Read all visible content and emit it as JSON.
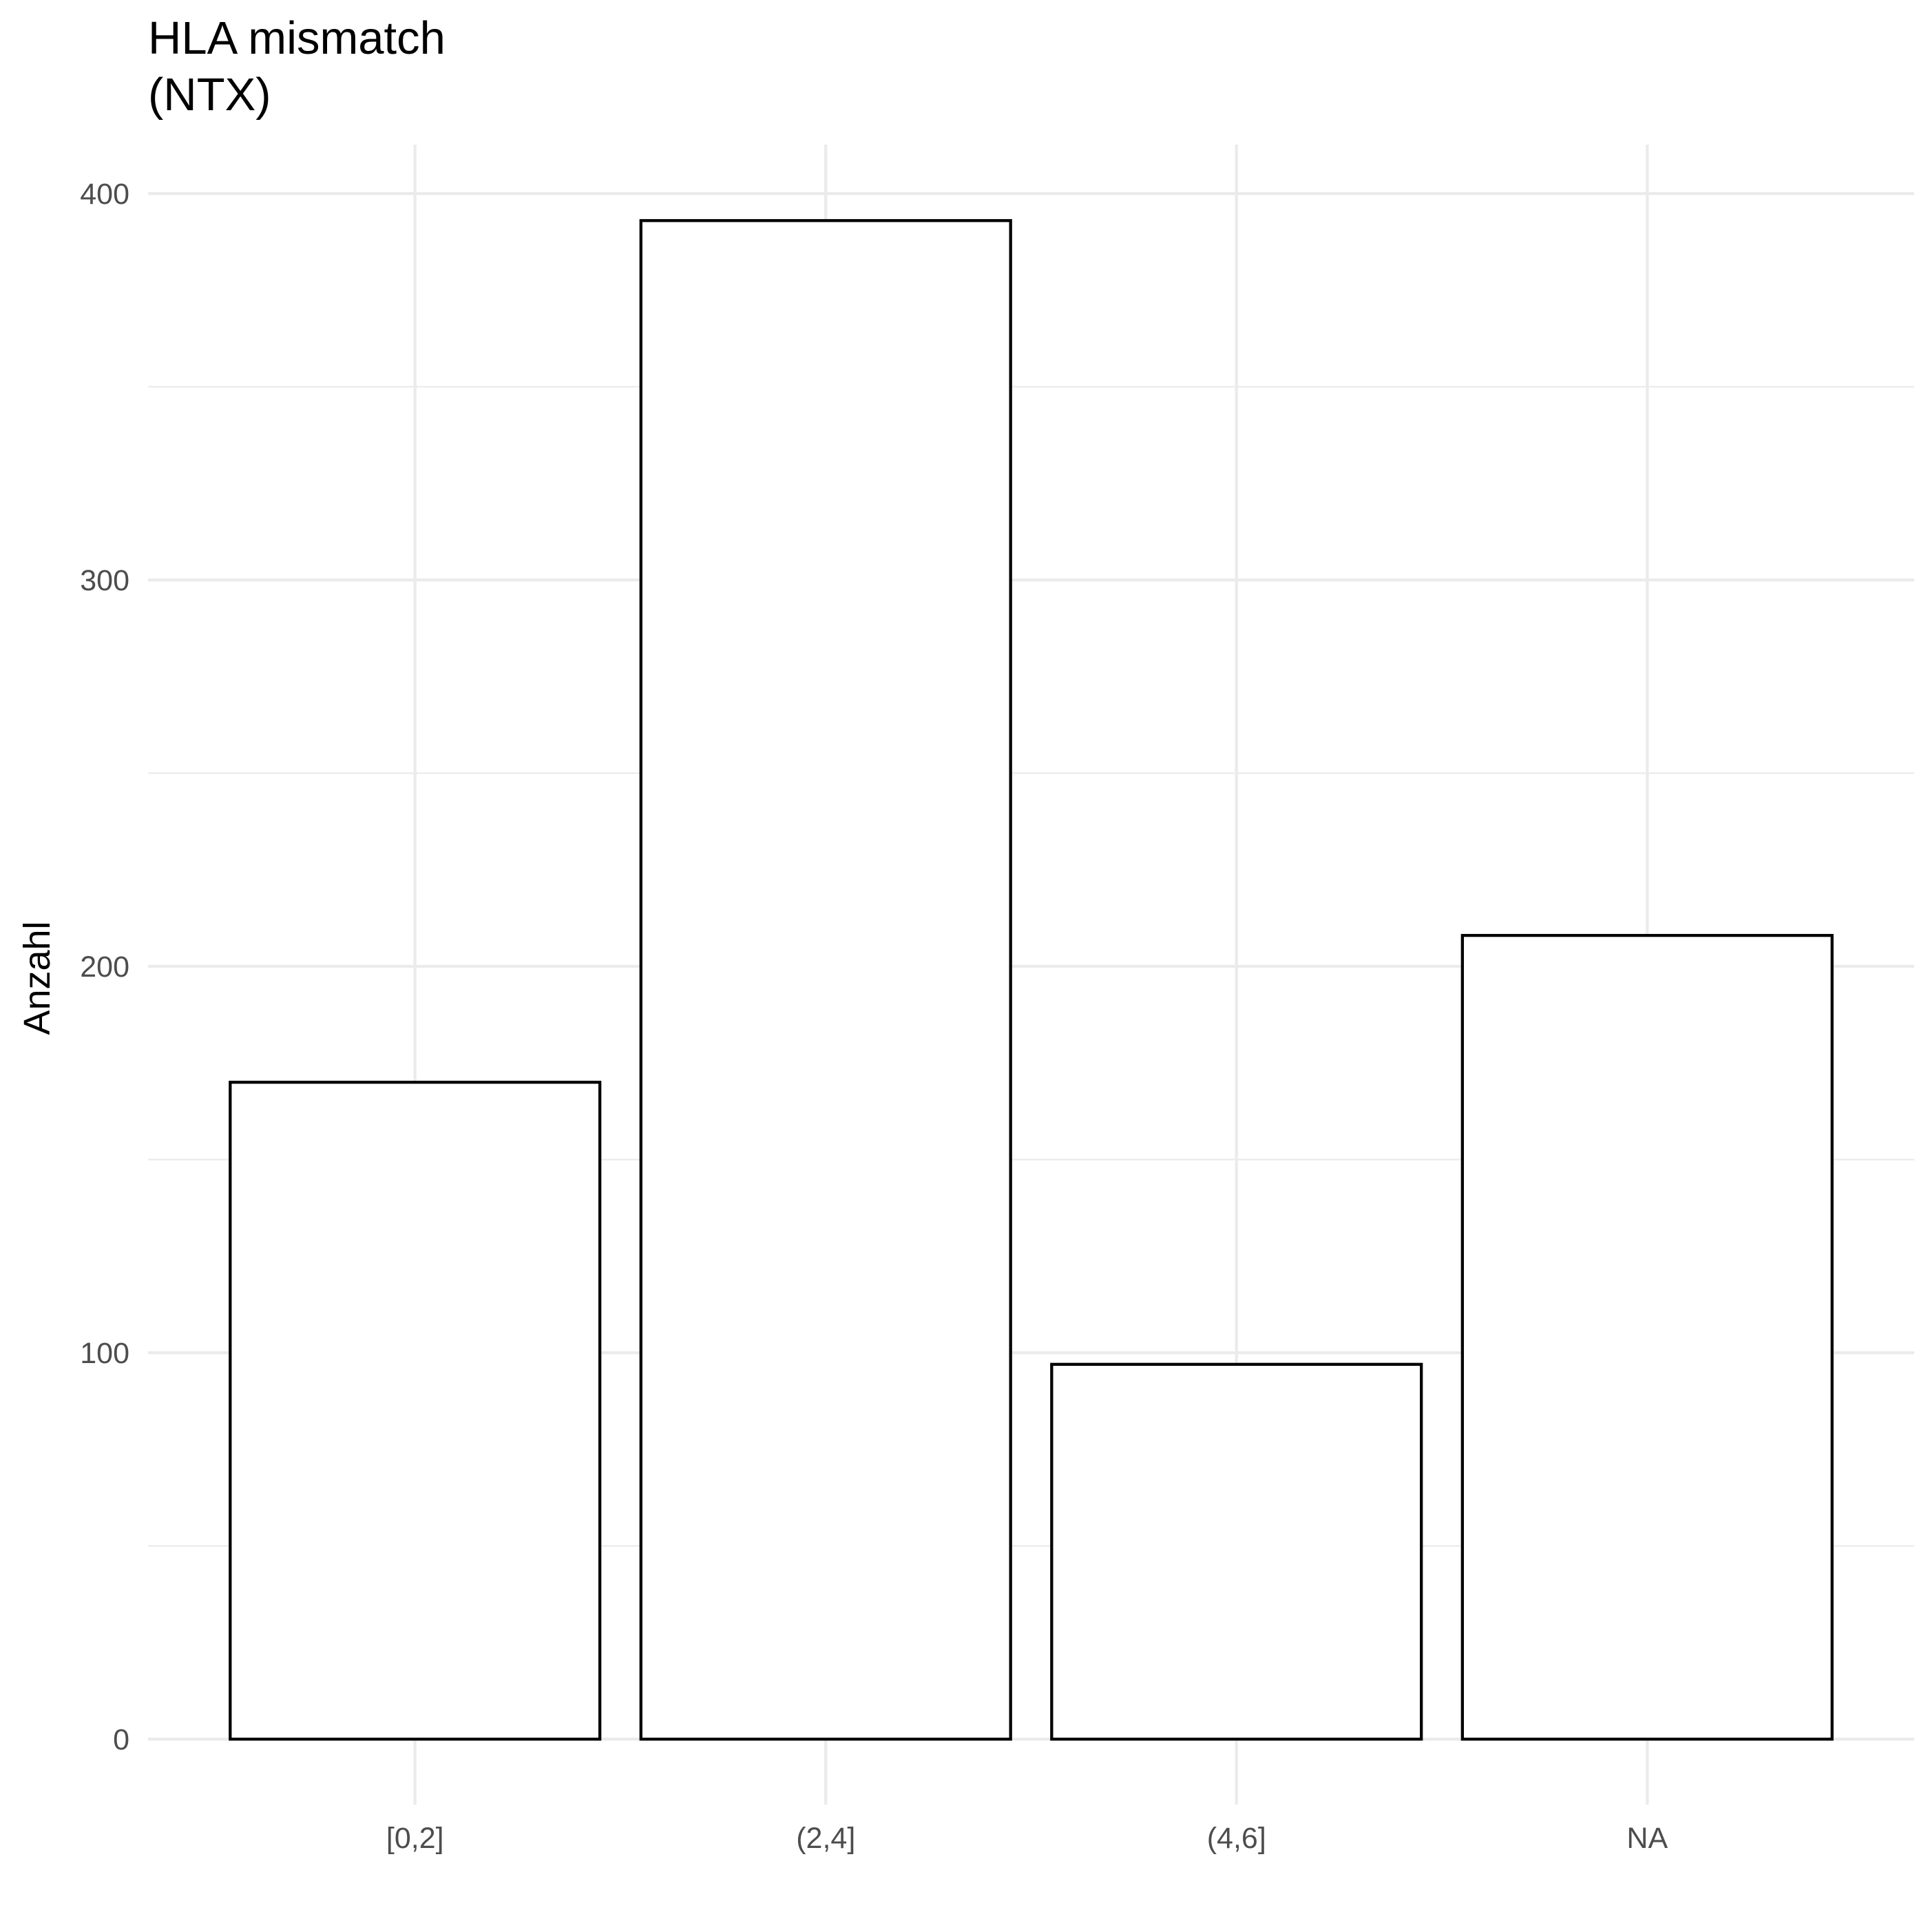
{
  "chart_data": {
    "type": "bar",
    "title_lines": [
      "HLA mismatch",
      "(NTX)"
    ],
    "xlabel": "",
    "ylabel": "Anzahl",
    "categories": [
      "[0,2]",
      "(2,4]",
      "(4,6]",
      "NA"
    ],
    "values": [
      170,
      393,
      97,
      208
    ],
    "ylim": [
      0,
      400
    ],
    "yticks": [
      0,
      100,
      200,
      300,
      400
    ],
    "grid": true,
    "legend": "none",
    "colors": {
      "bar_fill": "#ffffff",
      "bar_stroke": "#000000",
      "grid": "#ebebeb",
      "tick_text": "#4d4d4d",
      "text": "#000000"
    }
  }
}
